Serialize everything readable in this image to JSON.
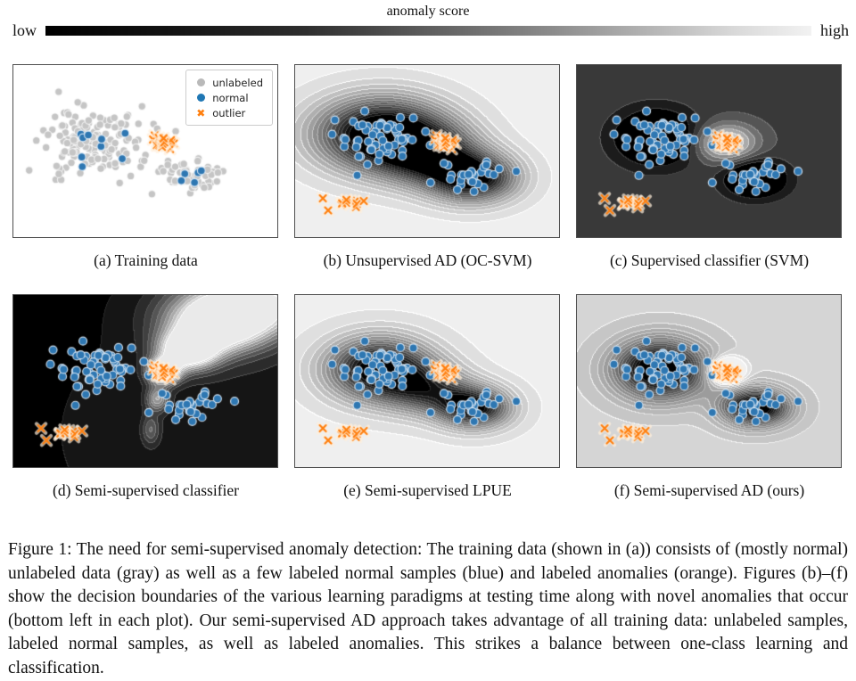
{
  "colorbar": {
    "title": "anomaly score",
    "left_label": "low",
    "right_label": "high",
    "start_color": "#000000",
    "end_color": "#f2f2f2"
  },
  "legend": {
    "items": [
      {
        "label": "unlabeled",
        "marker": "circle",
        "color": "#b9b9b9"
      },
      {
        "label": "normal",
        "marker": "circle",
        "color": "#1f77b4"
      },
      {
        "label": "outlier",
        "marker": "x",
        "color": "#ff7f0e"
      }
    ]
  },
  "figure_caption": "Figure 1: The need for semi-supervised anomaly detection: The training data (shown in (a)) consists of (mostly normal) unlabeled data (gray) as well as a few labeled normal samples (blue) and labeled anomalies (orange). Figures (b)–(f) show the decision boundaries of the various learning paradigms at testing time along with novel anomalies that occur (bottom left in each plot). Our semi-supervised AD approach takes advantage of all training data: unlabeled samples, labeled normal samples, as well as labeled anomalies. This strikes a balance between one-class learning and classification.",
  "chart_data": {
    "type": "scatter",
    "note": "six panels; b-f overlay a grayscale anomaly-score contour field (dark=low, light=high)",
    "point_groups": {
      "gray_big": {
        "marker": "circle",
        "color": "#c5c5c5",
        "edge": "rgba(255,255,255,0.7)",
        "count": 145,
        "cx": 0.295,
        "cy": 0.44,
        "sx": 0.088,
        "sy": 0.1,
        "r": 4.2,
        "seed": 11
      },
      "gray_small": {
        "marker": "circle",
        "color": "#c5c5c5",
        "edge": "rgba(255,255,255,0.7)",
        "count": 52,
        "cx": 0.675,
        "cy": 0.645,
        "sx": 0.052,
        "sy": 0.042,
        "r": 4.2,
        "seed": 12
      },
      "gray_strays": {
        "marker": "circle",
        "color": "#c5c5c5",
        "edge": "rgba(255,255,255,0.7)",
        "pts": [
          [
            0.545,
            0.37
          ],
          [
            0.615,
            0.385
          ],
          [
            0.465,
            0.48
          ],
          [
            0.585,
            0.58
          ],
          [
            0.775,
            0.625
          ],
          [
            0.525,
            0.75
          ],
          [
            0.43,
            0.3
          ]
        ],
        "r": 4.2
      },
      "blue_seed_big": {
        "marker": "circle",
        "color": "#2e77b2",
        "edge": "rgba(222,235,247,0.9)",
        "count": 9,
        "cx": 0.295,
        "cy": 0.47,
        "sx": 0.05,
        "sy": 0.055,
        "r": 4.4,
        "seed": 13
      },
      "blue_seed_small": {
        "marker": "circle",
        "color": "#2e77b2",
        "edge": "rgba(222,235,247,0.9)",
        "count": 6,
        "cx": 0.68,
        "cy": 0.65,
        "sx": 0.027,
        "sy": 0.025,
        "r": 4.4,
        "seed": 14
      },
      "outlier_train": {
        "marker": "x",
        "color": "#ff7f0e",
        "edge": "rgba(255,240,220,0.7)",
        "count": 18,
        "cx": 0.565,
        "cy": 0.45,
        "sx": 0.021,
        "sy": 0.032,
        "r": 3.5,
        "seed": 15
      },
      "blue_big": {
        "marker": "circle",
        "color": "#2e77b2",
        "edge": "rgba(222,235,247,0.9)",
        "count": 66,
        "cx": 0.315,
        "cy": 0.425,
        "sx": 0.077,
        "sy": 0.082,
        "r": 4.5,
        "seed": 21
      },
      "blue_small": {
        "marker": "circle",
        "color": "#2e77b2",
        "edge": "rgba(222,235,247,0.9)",
        "count": 31,
        "cx": 0.675,
        "cy": 0.655,
        "sx": 0.052,
        "sy": 0.04,
        "r": 4.5,
        "seed": 22
      },
      "novel_clump": {
        "marker": "x",
        "color": "#ff7f0e",
        "edge": "rgba(255,240,220,0.7)",
        "count": 9,
        "cx": 0.2,
        "cy": 0.8,
        "sx": 0.018,
        "sy": 0.02,
        "r": 3.5,
        "seed": 16
      },
      "novel_singles": {
        "marker": "x",
        "color": "#ff7f0e",
        "edge": "rgba(255,240,220,0.7)",
        "pts": [
          [
            0.105,
            0.775
          ],
          [
            0.125,
            0.845
          ],
          [
            0.26,
            0.79
          ]
        ],
        "r": 3.5
      }
    },
    "panels": [
      {
        "id": "a",
        "caption": "(a) Training data",
        "background": "#ffffff",
        "field": null,
        "has_legend": true,
        "groups": [
          "gray_big",
          "gray_small",
          "gray_strays",
          "blue_seed_big",
          "blue_seed_small",
          "outlier_train"
        ]
      },
      {
        "id": "b",
        "caption": "(b) Unsupervised AD (OC-SVM)",
        "background": "#f2f2f2",
        "field": {
          "base": 0.97,
          "levels": 16,
          "components": [
            {
              "cx": 0.33,
              "cy": 0.4,
              "sx": 0.17,
              "sy": 0.145,
              "amp": -1.15
            },
            {
              "cx": 0.67,
              "cy": 0.65,
              "sx": 0.115,
              "sy": 0.1,
              "amp": -1.0
            },
            {
              "cx": 0.5,
              "cy": 0.52,
              "sx": 0.13,
              "sy": 0.12,
              "amp": -0.7
            }
          ]
        },
        "groups": [
          "blue_big",
          "blue_small",
          "outlier_train",
          "novel_clump",
          "novel_singles"
        ]
      },
      {
        "id": "c",
        "caption": "(c) Supervised classifier (SVM)",
        "background": "#3c3c3c",
        "field": {
          "base": 0.3,
          "levels": 9,
          "components": [
            {
              "cx": 0.3,
              "cy": 0.42,
              "sx": 0.105,
              "sy": 0.11,
              "amp": -0.6
            },
            {
              "cx": 0.675,
              "cy": 0.66,
              "sx": 0.08,
              "sy": 0.075,
              "amp": -0.6
            },
            {
              "cx": 0.565,
              "cy": 0.45,
              "sx": 0.08,
              "sy": 0.075,
              "amp": 0.68
            }
          ]
        },
        "groups": [
          "blue_big",
          "blue_small",
          "outlier_train",
          "novel_clump",
          "novel_singles"
        ]
      },
      {
        "id": "d",
        "caption": "(d) Semi-supervised classifier",
        "background": "#0a0a0a",
        "field": {
          "base": 0.06,
          "levels": 12,
          "components": [
            {
              "cx": 0.57,
              "cy": 0.44,
              "sx": 0.04,
              "sy": 0.05,
              "amp": 1.25
            },
            {
              "cx": 0.66,
              "cy": 0.32,
              "sx": 0.075,
              "sy": 0.075,
              "amp": 1.15
            },
            {
              "cx": 0.77,
              "cy": 0.18,
              "sx": 0.13,
              "sy": 0.11,
              "amp": 1.05
            },
            {
              "cx": 0.9,
              "cy": 0.05,
              "sx": 0.18,
              "sy": 0.12,
              "amp": 0.95
            },
            {
              "cx": 0.545,
              "cy": 0.6,
              "sx": 0.028,
              "sy": 0.05,
              "amp": 0.55
            },
            {
              "cx": 0.52,
              "cy": 0.78,
              "sx": 0.022,
              "sy": 0.06,
              "amp": 0.3
            },
            {
              "cx": 0.95,
              "cy": 0.8,
              "sx": 0.45,
              "sy": 0.45,
              "amp": 0.1
            }
          ]
        },
        "groups": [
          "blue_big",
          "blue_small",
          "outlier_train",
          "novel_clump",
          "novel_singles"
        ]
      },
      {
        "id": "e",
        "caption": "(e) Semi-supervised LPUE",
        "background": "#f2f2f2",
        "field": {
          "base": 0.96,
          "levels": 16,
          "components": [
            {
              "cx": 0.32,
              "cy": 0.43,
              "sx": 0.135,
              "sy": 0.125,
              "amp": -1.05
            },
            {
              "cx": 0.675,
              "cy": 0.65,
              "sx": 0.095,
              "sy": 0.085,
              "amp": -0.95
            },
            {
              "cx": 0.5,
              "cy": 0.55,
              "sx": 0.11,
              "sy": 0.1,
              "amp": -0.55
            }
          ]
        },
        "groups": [
          "blue_big",
          "blue_small",
          "outlier_train",
          "novel_clump",
          "novel_singles"
        ]
      },
      {
        "id": "f",
        "caption": "(f) Semi-supervised AD (ours)",
        "background": "#d4d4d4",
        "field": {
          "base": 0.85,
          "levels": 18,
          "components": [
            {
              "cx": 0.315,
              "cy": 0.43,
              "sx": 0.115,
              "sy": 0.115,
              "amp": -1.05
            },
            {
              "cx": 0.675,
              "cy": 0.65,
              "sx": 0.085,
              "sy": 0.075,
              "amp": -1.0
            },
            {
              "cx": 0.565,
              "cy": 0.44,
              "sx": 0.045,
              "sy": 0.05,
              "amp": 0.6
            }
          ]
        },
        "groups": [
          "blue_big",
          "blue_small",
          "outlier_train",
          "novel_clump",
          "novel_singles"
        ]
      }
    ]
  }
}
